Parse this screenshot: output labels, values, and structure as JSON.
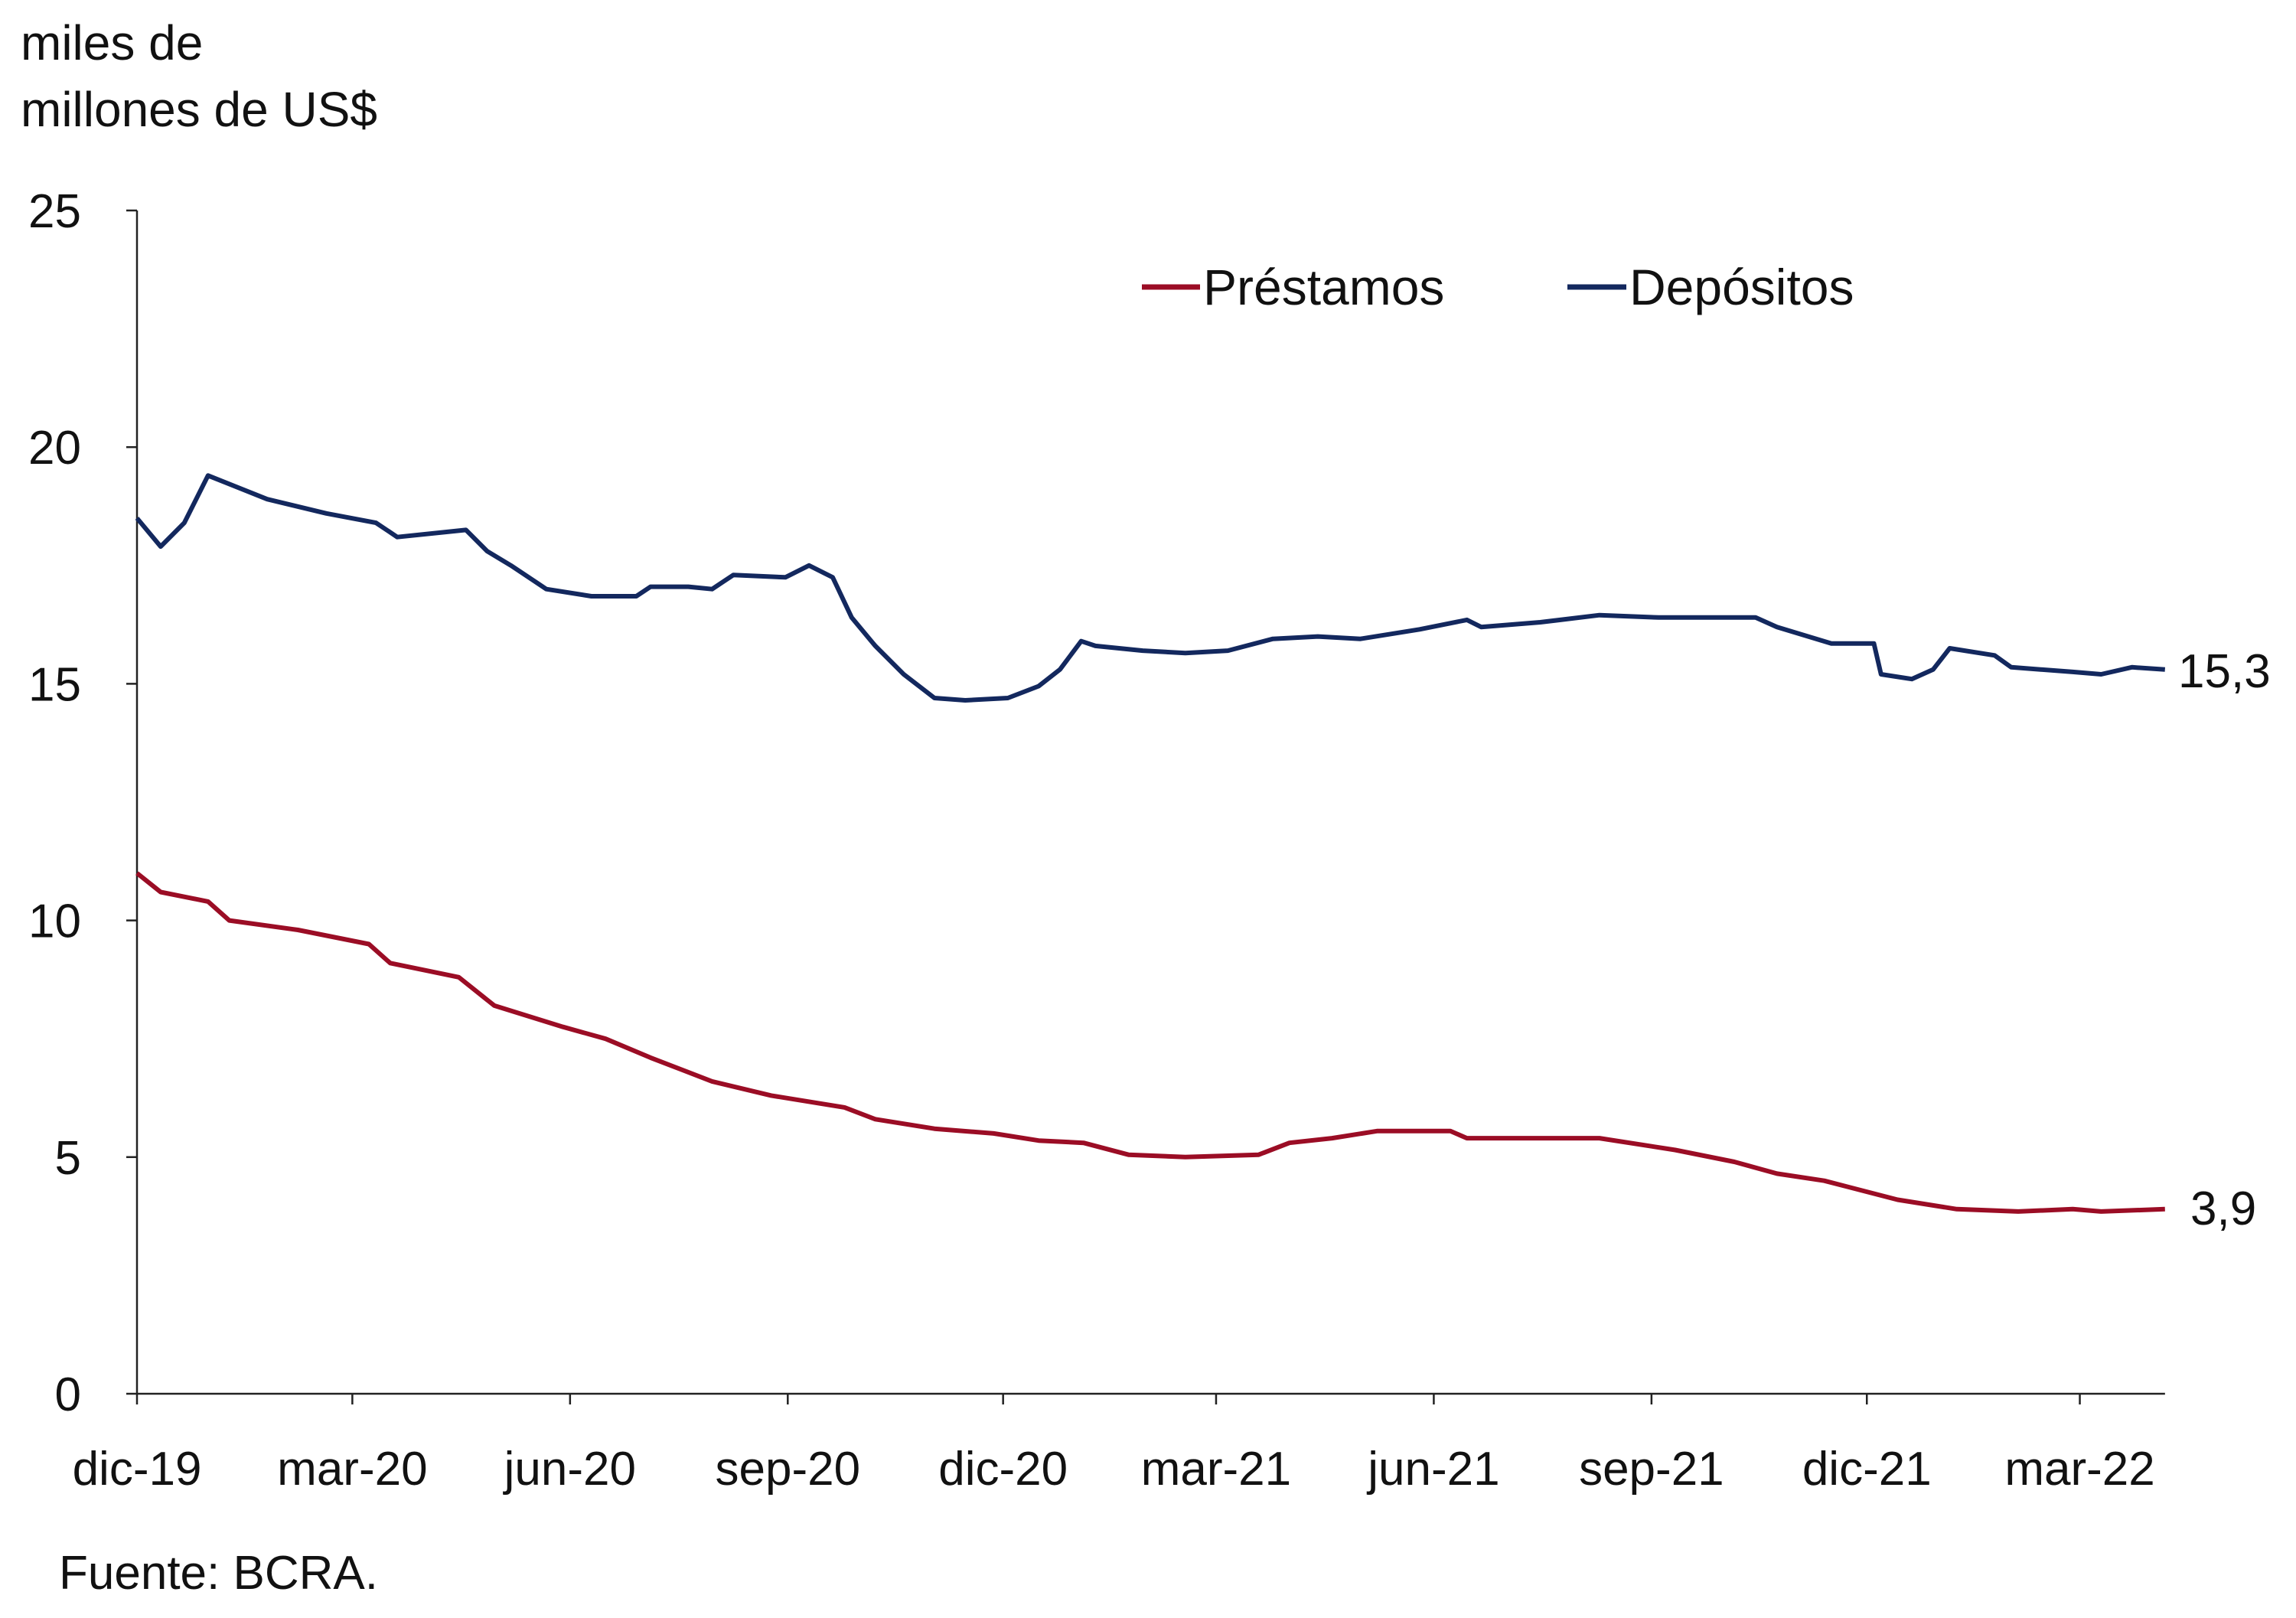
{
  "chart_data": {
    "type": "line",
    "title": "",
    "ylabel_lines": [
      "miles de",
      "millones de US$"
    ],
    "xlabel": "",
    "ylim": [
      0,
      25
    ],
    "yticks": [
      0,
      5,
      10,
      15,
      20,
      25
    ],
    "ytick_labels": [
      "0",
      "5",
      "10",
      "15",
      "20",
      "25"
    ],
    "xticks": [
      "2019-12-01",
      "2020-03-01",
      "2020-06-01",
      "2020-09-01",
      "2020-12-01",
      "2021-03-01",
      "2021-06-01",
      "2021-09-01",
      "2021-12-01",
      "2022-03-01"
    ],
    "xtick_labels": [
      "dic-19",
      "mar-20",
      "jun-20",
      "sep-20",
      "dic-20",
      "mar-21",
      "jun-21",
      "sep-21",
      "dic-21",
      "mar-22"
    ],
    "xlim": [
      "2019-12-01",
      "2022-04-06"
    ],
    "grid": false,
    "legend_position": "top-center",
    "source": "Fuente: BCRA.",
    "series": [
      {
        "name": "Préstamos",
        "color": "#9b0d25",
        "end_label": "3,9",
        "points": [
          [
            "2019-12-01",
            11.0
          ],
          [
            "2019-12-11",
            10.6
          ],
          [
            "2019-12-31",
            10.4
          ],
          [
            "2020-01-09",
            10.0
          ],
          [
            "2020-02-07",
            9.8
          ],
          [
            "2020-03-08",
            9.5
          ],
          [
            "2020-03-17",
            9.1
          ],
          [
            "2020-04-15",
            8.8
          ],
          [
            "2020-04-30",
            8.2
          ],
          [
            "2020-05-29",
            7.75
          ],
          [
            "2020-06-16",
            7.5
          ],
          [
            "2020-07-05",
            7.1
          ],
          [
            "2020-07-31",
            6.6
          ],
          [
            "2020-08-25",
            6.3
          ],
          [
            "2020-09-25",
            6.05
          ],
          [
            "2020-10-08",
            5.8
          ],
          [
            "2020-11-02",
            5.6
          ],
          [
            "2020-11-27",
            5.5
          ],
          [
            "2020-12-16",
            5.35
          ],
          [
            "2021-01-04",
            5.3
          ],
          [
            "2021-01-23",
            5.05
          ],
          [
            "2021-02-16",
            5.0
          ],
          [
            "2021-03-19",
            5.05
          ],
          [
            "2021-04-01",
            5.3
          ],
          [
            "2021-04-19",
            5.4
          ],
          [
            "2021-05-08",
            5.55
          ],
          [
            "2021-06-08",
            5.55
          ],
          [
            "2021-06-15",
            5.4
          ],
          [
            "2021-07-16",
            5.4
          ],
          [
            "2021-08-10",
            5.4
          ],
          [
            "2021-09-11",
            5.15
          ],
          [
            "2021-10-06",
            4.9
          ],
          [
            "2021-10-24",
            4.65
          ],
          [
            "2021-11-13",
            4.5
          ],
          [
            "2021-12-14",
            4.1
          ],
          [
            "2022-01-08",
            3.9
          ],
          [
            "2022-02-03",
            3.85
          ],
          [
            "2022-02-26",
            3.9
          ],
          [
            "2022-03-10",
            3.85
          ],
          [
            "2022-04-06",
            3.9
          ]
        ]
      },
      {
        "name": "Depósitos",
        "color": "#13285e",
        "end_label": "15,3",
        "points": [
          [
            "2019-12-01",
            18.5
          ],
          [
            "2019-12-11",
            17.9
          ],
          [
            "2019-12-21",
            18.4
          ],
          [
            "2019-12-31",
            19.4
          ],
          [
            "2020-01-25",
            18.9
          ],
          [
            "2020-02-19",
            18.6
          ],
          [
            "2020-03-11",
            18.4
          ],
          [
            "2020-03-20",
            18.1
          ],
          [
            "2020-04-18",
            18.25
          ],
          [
            "2020-04-27",
            17.8
          ],
          [
            "2020-05-07",
            17.5
          ],
          [
            "2020-05-22",
            17.0
          ],
          [
            "2020-06-10",
            16.85
          ],
          [
            "2020-06-29",
            16.85
          ],
          [
            "2020-07-05",
            17.05
          ],
          [
            "2020-07-21",
            17.05
          ],
          [
            "2020-07-31",
            17.0
          ],
          [
            "2020-08-09",
            17.3
          ],
          [
            "2020-08-31",
            17.25
          ],
          [
            "2020-09-10",
            17.5
          ],
          [
            "2020-09-20",
            17.25
          ],
          [
            "2020-09-28",
            16.4
          ],
          [
            "2020-10-08",
            15.8
          ],
          [
            "2020-10-20",
            15.2
          ],
          [
            "2020-11-02",
            14.7
          ],
          [
            "2020-11-15",
            14.65
          ],
          [
            "2020-12-03",
            14.7
          ],
          [
            "2020-12-16",
            14.95
          ],
          [
            "2020-12-25",
            15.3
          ],
          [
            "2021-01-03",
            15.9
          ],
          [
            "2021-01-09",
            15.8
          ],
          [
            "2021-01-29",
            15.7
          ],
          [
            "2021-02-16",
            15.65
          ],
          [
            "2021-03-06",
            15.7
          ],
          [
            "2021-03-25",
            15.95
          ],
          [
            "2021-04-13",
            16.0
          ],
          [
            "2021-05-01",
            15.95
          ],
          [
            "2021-05-26",
            16.15
          ],
          [
            "2021-06-15",
            16.35
          ],
          [
            "2021-06-21",
            16.2
          ],
          [
            "2021-07-16",
            16.3
          ],
          [
            "2021-08-10",
            16.45
          ],
          [
            "2021-09-04",
            16.4
          ],
          [
            "2021-09-29",
            16.4
          ],
          [
            "2021-10-15",
            16.4
          ],
          [
            "2021-10-24",
            16.2
          ],
          [
            "2021-11-16",
            15.85
          ],
          [
            "2021-12-04",
            15.85
          ],
          [
            "2021-12-07",
            15.2
          ],
          [
            "2021-12-20",
            15.1
          ],
          [
            "2021-12-29",
            15.3
          ],
          [
            "2022-01-05",
            15.75
          ],
          [
            "2022-01-24",
            15.6
          ],
          [
            "2022-01-31",
            15.35
          ],
          [
            "2022-02-26",
            15.25
          ],
          [
            "2022-03-10",
            15.2
          ],
          [
            "2022-03-23",
            15.35
          ],
          [
            "2022-04-06",
            15.3
          ]
        ]
      }
    ]
  }
}
